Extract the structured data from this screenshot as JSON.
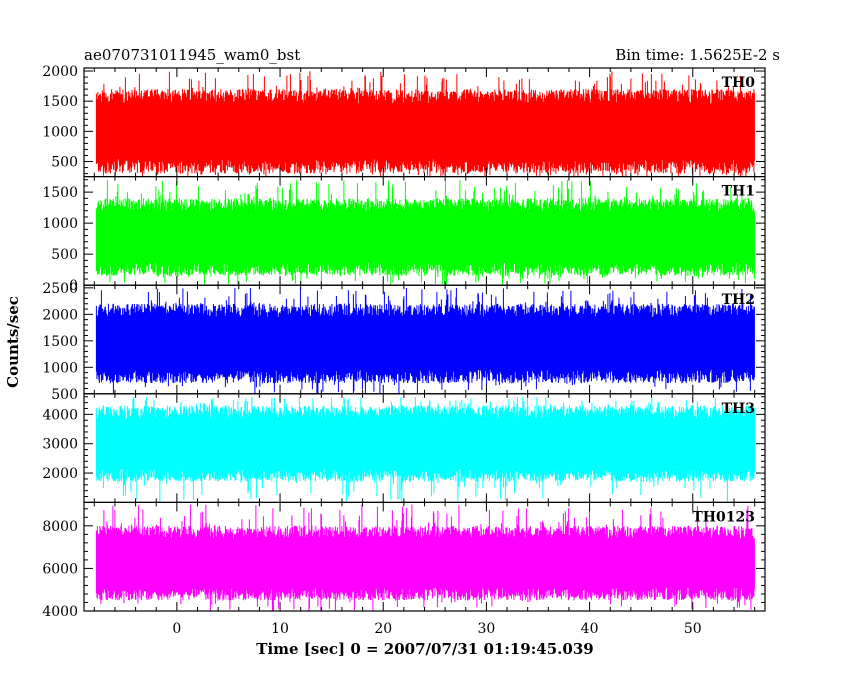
{
  "header": {
    "title": "ae070731011945_wam0_bst",
    "bin_time": "Bin time: 1.5625E-2 s"
  },
  "axes": {
    "xlabel": "Time [sec] 0 = 2007/07/31 01:19:45.039",
    "ylabel": "Counts/sec"
  },
  "chart_data": {
    "type": "line",
    "title": "ae070731011945_wam0_bst",
    "xlabel": "Time [sec] 0 = 2007/07/31 01:19:45.039",
    "ylabel": "Counts/sec",
    "xlim": [
      -9,
      57
    ],
    "x_ticks": [
      0,
      10,
      20,
      30,
      40,
      50
    ],
    "x_data_range": [
      -7.8,
      56.0
    ],
    "bin_time_s": 0.015625,
    "panels": [
      {
        "name": "TH0",
        "color": "#ff0000",
        "ylim": [
          250,
          2050
        ],
        "yticks": [
          500,
          1000,
          1500,
          2000
        ],
        "mean": 1000,
        "typical_range": [
          300,
          1700
        ],
        "peak_max": 2000
      },
      {
        "name": "TH1",
        "color": "#00ff00",
        "ylim": [
          0,
          1750
        ],
        "yticks": [
          0,
          500,
          1000,
          1500
        ],
        "mean": 780,
        "typical_range": [
          150,
          1400
        ],
        "peak_max": 1700
      },
      {
        "name": "TH2",
        "color": "#0000ff",
        "ylim": [
          500,
          2550
        ],
        "yticks": [
          500,
          1000,
          1500,
          2000,
          2500
        ],
        "mean": 1450,
        "typical_range": [
          700,
          2200
        ],
        "peak_max": 2500
      },
      {
        "name": "TH3",
        "color": "#00ffff",
        "ylim": [
          1000,
          4700
        ],
        "yticks": [
          2000,
          3000,
          4000
        ],
        "mean": 3000,
        "typical_range": [
          1700,
          4300
        ],
        "peak_max": 4600
      },
      {
        "name": "TH0123",
        "color": "#ff00ff",
        "ylim": [
          4000,
          9100
        ],
        "yticks": [
          4000,
          6000,
          8000
        ],
        "mean": 6250,
        "typical_range": [
          4500,
          8000
        ],
        "peak_max": 9000
      }
    ]
  }
}
